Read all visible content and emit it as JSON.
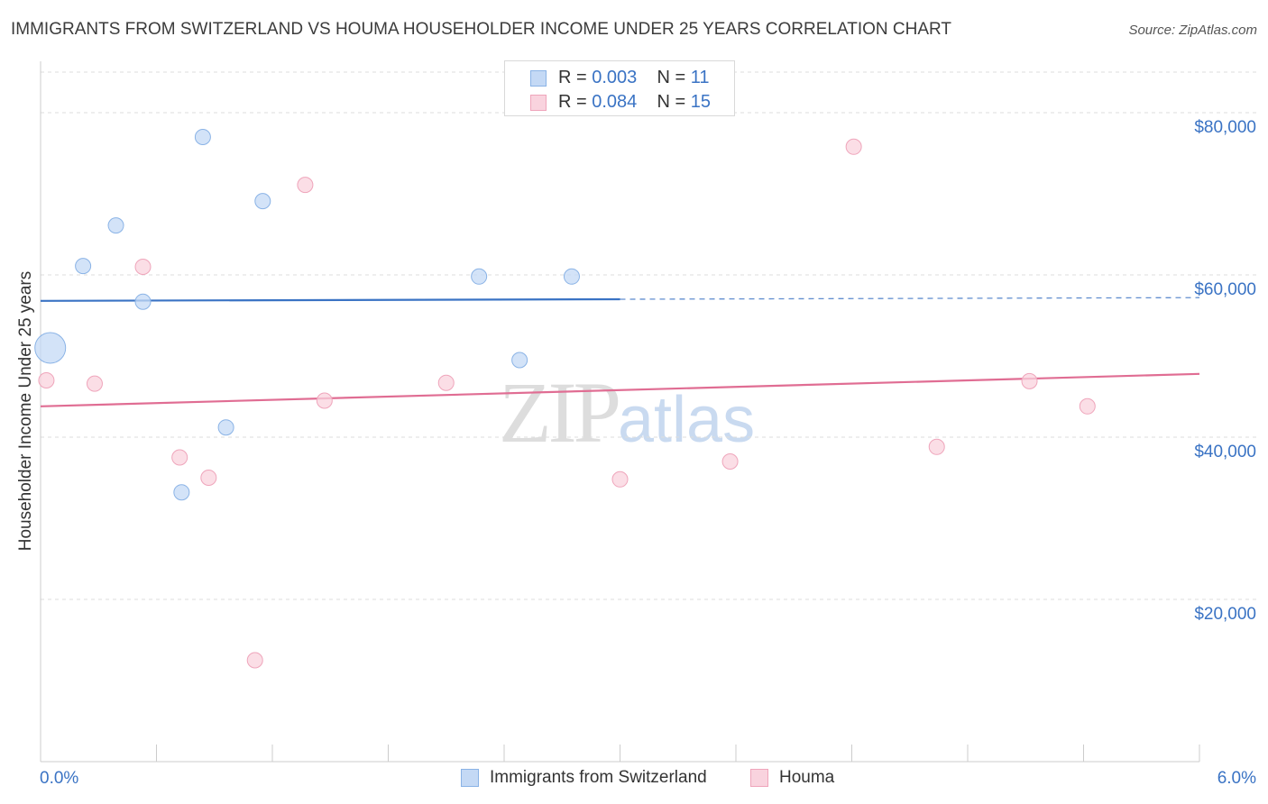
{
  "title": "IMMIGRANTS FROM SWITZERLAND VS HOUMA HOUSEHOLDER INCOME UNDER 25 YEARS CORRELATION CHART",
  "source": "Source: ZipAtlas.com",
  "watermark": {
    "zip": "ZIP",
    "atlas": "atlas"
  },
  "colors": {
    "blue_fill": "#c4d9f5",
    "blue_stroke": "#8ab3e6",
    "blue_line": "#3a73c4",
    "pink_fill": "#f9d3de",
    "pink_stroke": "#efa5bb",
    "pink_line": "#e06d93",
    "axis_text": "#3a73c4",
    "grid": "#dddddd"
  },
  "legend": {
    "rows": [
      {
        "r_label": "R = ",
        "r_value": "0.003",
        "n_label": "N = ",
        "n_value": "11"
      },
      {
        "r_label": "R = ",
        "r_value": "0.084",
        "n_label": "N = ",
        "n_value": "15"
      }
    ]
  },
  "bottom_legend": [
    "Immigrants from Switzerland",
    "Houma"
  ],
  "chart_data": {
    "type": "scatter",
    "title": "IMMIGRANTS FROM SWITZERLAND VS HOUMA HOUSEHOLDER INCOME UNDER 25 YEARS CORRELATION CHART",
    "xlabel": "",
    "ylabel": "Householder Income Under 25 years",
    "xlim": [
      0,
      6.0
    ],
    "ylim": [
      0,
      85000
    ],
    "x_tick_labels": {
      "left": "0.0%",
      "right": "6.0%"
    },
    "y_ticks": [
      {
        "value": 20000,
        "label": "$20,000"
      },
      {
        "value": 40000,
        "label": "$40,000"
      },
      {
        "value": 60000,
        "label": "$60,000"
      },
      {
        "value": 80000,
        "label": "$80,000"
      }
    ],
    "series": [
      {
        "name": "Immigrants from Switzerland",
        "color": "blue",
        "points": [
          {
            "x": 0.05,
            "y": 51000,
            "big": true
          },
          {
            "x": 0.22,
            "y": 61100
          },
          {
            "x": 0.39,
            "y": 66100
          },
          {
            "x": 0.53,
            "y": 56700
          },
          {
            "x": 0.73,
            "y": 33200
          },
          {
            "x": 0.84,
            "y": 77000
          },
          {
            "x": 0.96,
            "y": 41200
          },
          {
            "x": 1.15,
            "y": 69100
          },
          {
            "x": 2.27,
            "y": 59800
          },
          {
            "x": 2.48,
            "y": 49500
          },
          {
            "x": 2.75,
            "y": 59800
          }
        ],
        "trend": {
          "x0": 0.0,
          "y0": 56800,
          "x1": 3.0,
          "y1": 57000,
          "dashed_to_x": 6.0,
          "dashed_to_y": 57200
        }
      },
      {
        "name": "Houma",
        "color": "pink",
        "points": [
          {
            "x": 0.03,
            "y": 47000
          },
          {
            "x": 0.28,
            "y": 46600
          },
          {
            "x": 0.53,
            "y": 61000
          },
          {
            "x": 0.72,
            "y": 37500
          },
          {
            "x": 0.87,
            "y": 35000
          },
          {
            "x": 1.11,
            "y": 12500
          },
          {
            "x": 1.37,
            "y": 71100
          },
          {
            "x": 1.47,
            "y": 44500
          },
          {
            "x": 2.1,
            "y": 46700
          },
          {
            "x": 3.0,
            "y": 34800
          },
          {
            "x": 3.57,
            "y": 37000
          },
          {
            "x": 4.21,
            "y": 75800
          },
          {
            "x": 4.64,
            "y": 38800
          },
          {
            "x": 5.12,
            "y": 46900
          },
          {
            "x": 5.42,
            "y": 43800
          }
        ],
        "trend": {
          "x0": 0.0,
          "y0": 43800,
          "x1": 6.0,
          "y1": 47800
        }
      }
    ]
  }
}
